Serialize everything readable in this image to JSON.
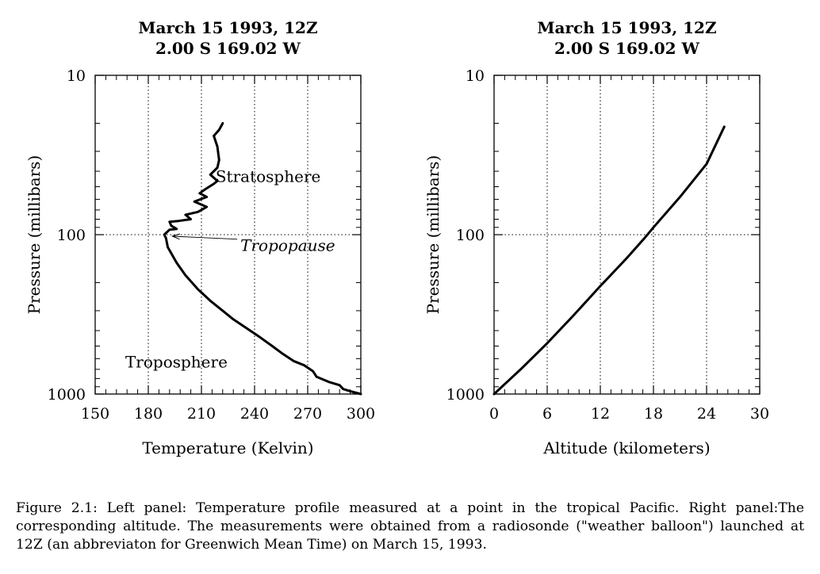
{
  "caption": "Figure 2.1: Left panel: Temperature profile measured at a point in the tropical Pacific. Right panel:The corresponding altitude. The measurements were obtained from a radiosonde (\"weather balloon\") launched at 12Z (an abbreviaton for Greenwich Mean Time) on March 15, 1993.",
  "chart_data": [
    {
      "type": "line",
      "title": "March 15 1993, 12Z",
      "subtitle": "2.00 S 169.02 W",
      "xlabel": "Temperature (Kelvin)",
      "ylabel": "Pressure (millibars)",
      "xlim": [
        150,
        300
      ],
      "ylim": [
        1000,
        10
      ],
      "yscale": "log",
      "xticks": [
        "150",
        "180",
        "210",
        "240",
        "270",
        "300"
      ],
      "yticks": [
        "10",
        "100",
        "1000"
      ],
      "grid": "dotted at x = 180, 210, 240, 270 and y = 10, 100",
      "series": [
        {
          "points": [
            [
              300,
              1000
            ],
            [
              294,
              960
            ],
            [
              290,
              930
            ],
            [
              288,
              880
            ],
            [
              282,
              840
            ],
            [
              275,
              780
            ],
            [
              273,
              720
            ],
            [
              268,
              660
            ],
            [
              262,
              620
            ],
            [
              256,
              560
            ],
            [
              250,
              500
            ],
            [
              243,
              440
            ],
            [
              236,
              390
            ],
            [
              228,
              340
            ],
            [
              222,
              300
            ],
            [
              215,
              260
            ],
            [
              208,
              220
            ],
            [
              201,
              180
            ],
            [
              196,
              150
            ],
            [
              191,
              120
            ],
            [
              190,
              105
            ],
            [
              189,
              100
            ],
            [
              192,
              93
            ],
            [
              196,
              92
            ],
            [
              193,
              88
            ],
            [
              192,
              83
            ],
            [
              197,
              82
            ],
            [
              204,
              80
            ],
            [
              201,
              75
            ],
            [
              208,
              72
            ],
            [
              213,
              67
            ],
            [
              206,
              62
            ],
            [
              213,
              58
            ],
            [
              209,
              55
            ],
            [
              212,
              52
            ],
            [
              217,
              48
            ],
            [
              219,
              46
            ],
            [
              215,
              42
            ],
            [
              219,
              38
            ],
            [
              220,
              34
            ],
            [
              219,
              28
            ],
            [
              218,
              26
            ],
            [
              217,
              24
            ],
            [
              220,
              22
            ],
            [
              222,
              20
            ]
          ]
        }
      ],
      "annotations": [
        {
          "text": "Stratosphere",
          "at": [
            218,
            43
          ]
        },
        {
          "text": "Tropopause",
          "at": [
            232,
            117
          ],
          "style": "italic",
          "arrow_to": [
            190,
            100
          ]
        },
        {
          "text": "Troposphere",
          "at": [
            167,
            630
          ]
        }
      ]
    },
    {
      "type": "line",
      "title": "March 15 1993, 12Z",
      "subtitle": "2.00 S 169.02 W",
      "xlabel": "Altitude (kilometers)",
      "ylabel": "Pressure (millibars)",
      "xlim": [
        0,
        30
      ],
      "ylim": [
        1000,
        10
      ],
      "yscale": "log",
      "xticks": [
        "0",
        "6",
        "12",
        "18",
        "24",
        "30"
      ],
      "yticks": [
        "10",
        "100",
        "1000"
      ],
      "grid": "dotted at x = 6, 12, 18, 24 and y = 10, 100",
      "series": [
        {
          "points": [
            [
              0,
              1000
            ],
            [
              3,
              700
            ],
            [
              6,
              480
            ],
            [
              9,
              320
            ],
            [
              12,
              210
            ],
            [
              15,
              140
            ],
            [
              17,
              105
            ],
            [
              18,
              90
            ],
            [
              21,
              58
            ],
            [
              24,
              36
            ],
            [
              26,
              21
            ]
          ]
        }
      ]
    }
  ]
}
